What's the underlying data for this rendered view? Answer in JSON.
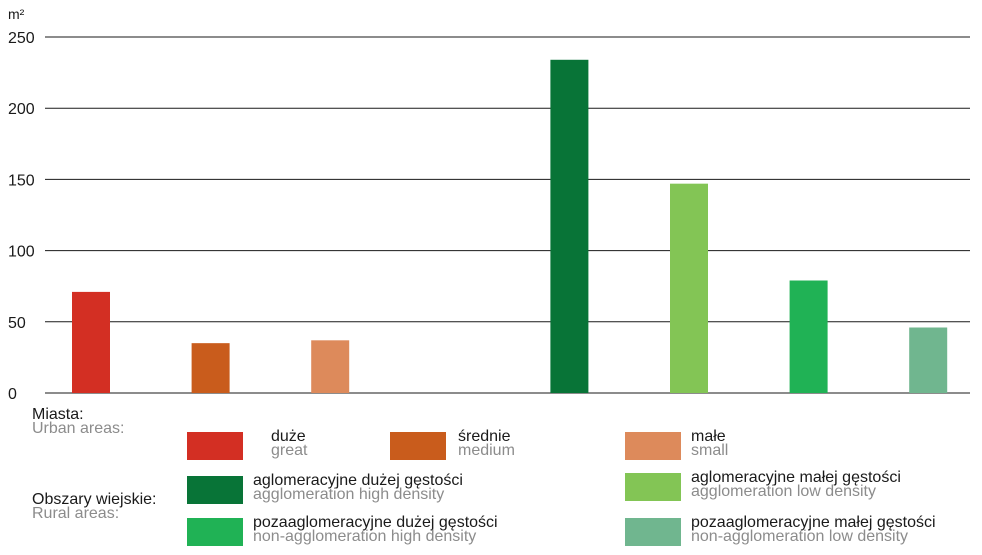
{
  "chart_data": {
    "type": "bar",
    "unit": "m²",
    "ylim": [
      0,
      250
    ],
    "yticks": [
      0,
      50,
      100,
      150,
      200,
      250
    ],
    "grid": true,
    "bars": [
      {
        "value": 71,
        "color": "#d32f23"
      },
      {
        "value": 35,
        "color": "#c95c1c"
      },
      {
        "value": 37,
        "color": "#dd8a5b"
      },
      {
        "value": null,
        "color": null
      },
      {
        "value": 234,
        "color": "#087437"
      },
      {
        "value": 147,
        "color": "#83c555"
      },
      {
        "value": 79,
        "color": "#20b255"
      },
      {
        "value": 46,
        "color": "#70b68f"
      }
    ]
  },
  "legend": {
    "urban_group": {
      "pl": "Miasta:",
      "en": "Urban areas:"
    },
    "rural_group": {
      "pl": "Obszary wiejskie:",
      "en": "Rural areas:"
    },
    "items": [
      {
        "pl": "duże",
        "en": "great",
        "color": "#d32f23"
      },
      {
        "pl": "średnie",
        "en": "medium",
        "color": "#c95c1c"
      },
      {
        "pl": "małe",
        "en": "small",
        "color": "#dd8a5b"
      },
      {
        "pl": "aglomeracyjne dużej gęstości",
        "en": "agglomeration high density",
        "color": "#087437"
      },
      {
        "pl": "aglomeracyjne małej gęstości",
        "en": "agglomeration low density",
        "color": "#83c555"
      },
      {
        "pl": "pozaaglomeracyjne dużej gęstości",
        "en": "non-agglomeration high density",
        "color": "#20b255"
      },
      {
        "pl": "pozaaglomeracyjne małej gęstości",
        "en": "non-agglomeration low density",
        "color": "#70b68f"
      }
    ]
  }
}
